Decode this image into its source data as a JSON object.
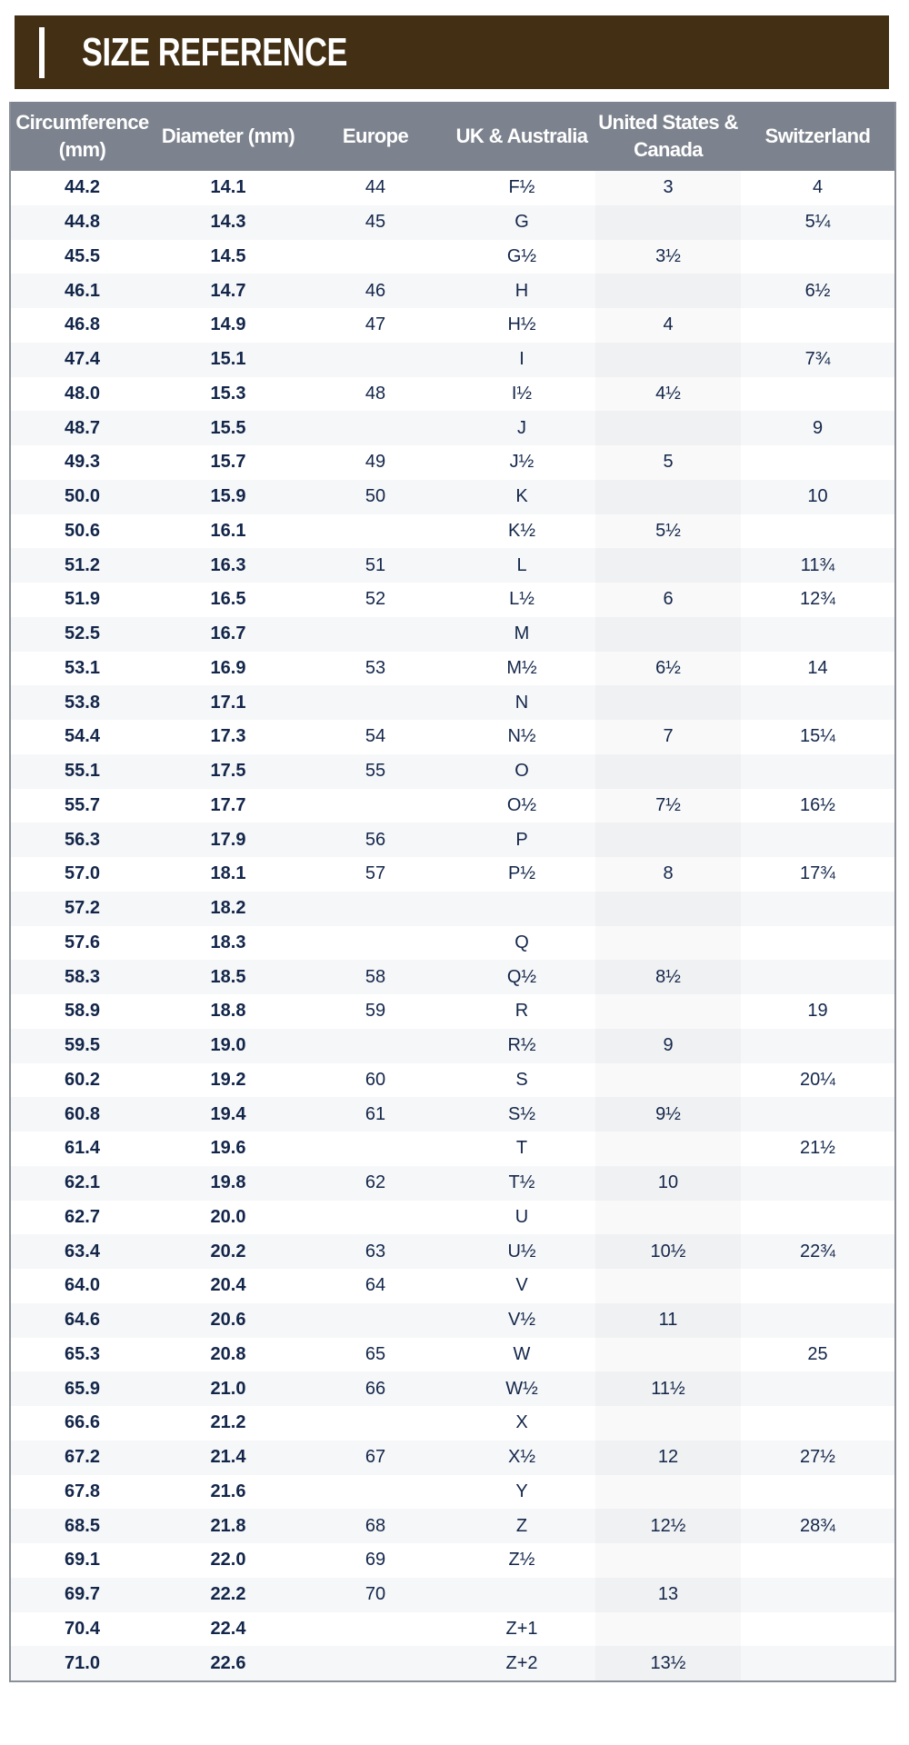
{
  "banner": {
    "title": "SIZE REFERENCE"
  },
  "table": {
    "headers": [
      "Circumference (mm)",
      "Diameter (mm)",
      "Europe",
      "UK & Australia",
      "United States & Canada",
      "Switzerland"
    ],
    "rows": [
      [
        "44.2",
        "14.1",
        "44",
        "F½",
        "3",
        "4"
      ],
      [
        "44.8",
        "14.3",
        "45",
        "G",
        "",
        "5¼"
      ],
      [
        "45.5",
        "14.5",
        "",
        "G½",
        "3½",
        ""
      ],
      [
        "46.1",
        "14.7",
        "46",
        "H",
        "",
        "6½"
      ],
      [
        "46.8",
        "14.9",
        "47",
        "H½",
        "4",
        ""
      ],
      [
        "47.4",
        "15.1",
        "",
        "I",
        "",
        "7¾"
      ],
      [
        "48.0",
        "15.3",
        "48",
        "I½",
        "4½",
        ""
      ],
      [
        "48.7",
        "15.5",
        "",
        "J",
        "",
        "9"
      ],
      [
        "49.3",
        "15.7",
        "49",
        "J½",
        "5",
        ""
      ],
      [
        "50.0",
        "15.9",
        "50",
        "K",
        "",
        "10"
      ],
      [
        "50.6",
        "16.1",
        "",
        "K½",
        "5½",
        ""
      ],
      [
        "51.2",
        "16.3",
        "51",
        "L",
        "",
        "11¾"
      ],
      [
        "51.9",
        "16.5",
        "52",
        "L½",
        "6",
        "12¾"
      ],
      [
        "52.5",
        "16.7",
        "",
        "M",
        "",
        ""
      ],
      [
        "53.1",
        "16.9",
        "53",
        "M½",
        "6½",
        "14"
      ],
      [
        "53.8",
        "17.1",
        "",
        "N",
        "",
        ""
      ],
      [
        "54.4",
        "17.3",
        "54",
        "N½",
        "7",
        "15¼"
      ],
      [
        "55.1",
        "17.5",
        "55",
        "O",
        "",
        ""
      ],
      [
        "55.7",
        "17.7",
        "",
        "O½",
        "7½",
        "16½"
      ],
      [
        "56.3",
        "17.9",
        "56",
        "P",
        "",
        ""
      ],
      [
        "57.0",
        "18.1",
        "57",
        "P½",
        "8",
        "17¾"
      ],
      [
        "57.2",
        "18.2",
        "",
        "",
        "",
        ""
      ],
      [
        "57.6",
        "18.3",
        "",
        "Q",
        "",
        ""
      ],
      [
        "58.3",
        "18.5",
        "58",
        "Q½",
        "8½",
        ""
      ],
      [
        "58.9",
        "18.8",
        "59",
        "R",
        "",
        "19"
      ],
      [
        "59.5",
        "19.0",
        "",
        "R½",
        "9",
        ""
      ],
      [
        "60.2",
        "19.2",
        "60",
        "S",
        "",
        "20¼"
      ],
      [
        "60.8",
        "19.4",
        "61",
        "S½",
        "9½",
        ""
      ],
      [
        "61.4",
        "19.6",
        "",
        "T",
        "",
        "21½"
      ],
      [
        "62.1",
        "19.8",
        "62",
        "T½",
        "10",
        ""
      ],
      [
        "62.7",
        "20.0",
        "",
        "U",
        "",
        ""
      ],
      [
        "63.4",
        "20.2",
        "63",
        "U½",
        "10½",
        "22¾"
      ],
      [
        "64.0",
        "20.4",
        "64",
        "V",
        "",
        ""
      ],
      [
        "64.6",
        "20.6",
        "",
        "V½",
        "11",
        ""
      ],
      [
        "65.3",
        "20.8",
        "65",
        "W",
        "",
        "25"
      ],
      [
        "65.9",
        "21.0",
        "66",
        "W½",
        "11½",
        ""
      ],
      [
        "66.6",
        "21.2",
        "",
        "X",
        "",
        ""
      ],
      [
        "67.2",
        "21.4",
        "67",
        "X½",
        "12",
        "27½"
      ],
      [
        "67.8",
        "21.6",
        "",
        "Y",
        "",
        ""
      ],
      [
        "68.5",
        "21.8",
        "68",
        "Z",
        "12½",
        "28¾"
      ],
      [
        "69.1",
        "22.0",
        "69",
        "Z½",
        "",
        ""
      ],
      [
        "69.7",
        "22.2",
        "70",
        "",
        "13",
        ""
      ],
      [
        "70.4",
        "22.4",
        "",
        "Z+1",
        "",
        ""
      ],
      [
        "71.0",
        "22.6",
        "",
        "Z+2",
        "13½",
        ""
      ]
    ]
  },
  "colors": {
    "banner": "#422f14",
    "header": "#7d838e",
    "text": "#13264a"
  }
}
